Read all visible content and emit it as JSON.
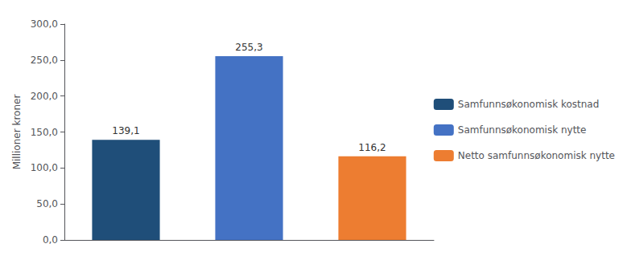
{
  "chart_data": {
    "type": "bar",
    "categories": [
      "Samfunnsøkonomisk kostnad",
      "Samfunnsøkonomisk nytte",
      "Netto samfunnsøkonomisk nytte"
    ],
    "values": [
      139.1,
      255.3,
      116.2
    ],
    "value_labels": [
      "139,1",
      "255,3",
      "116,2"
    ],
    "colors": [
      "#1f4e79",
      "#4472c4",
      "#ed7d31"
    ],
    "ylabel": "Millioner kroner",
    "ylim": [
      0,
      300
    ],
    "yticks": [
      {
        "value": 0,
        "label": "0,0"
      },
      {
        "value": 50,
        "label": "50,0"
      },
      {
        "value": 100,
        "label": "100,0"
      },
      {
        "value": 150,
        "label": "150,0"
      },
      {
        "value": 200,
        "label": "200,0"
      },
      {
        "value": 250,
        "label": "250,0"
      },
      {
        "value": 300,
        "label": "300,0"
      }
    ],
    "data_labels": true,
    "tick_labels": "y",
    "legend": "right",
    "grid": false
  }
}
